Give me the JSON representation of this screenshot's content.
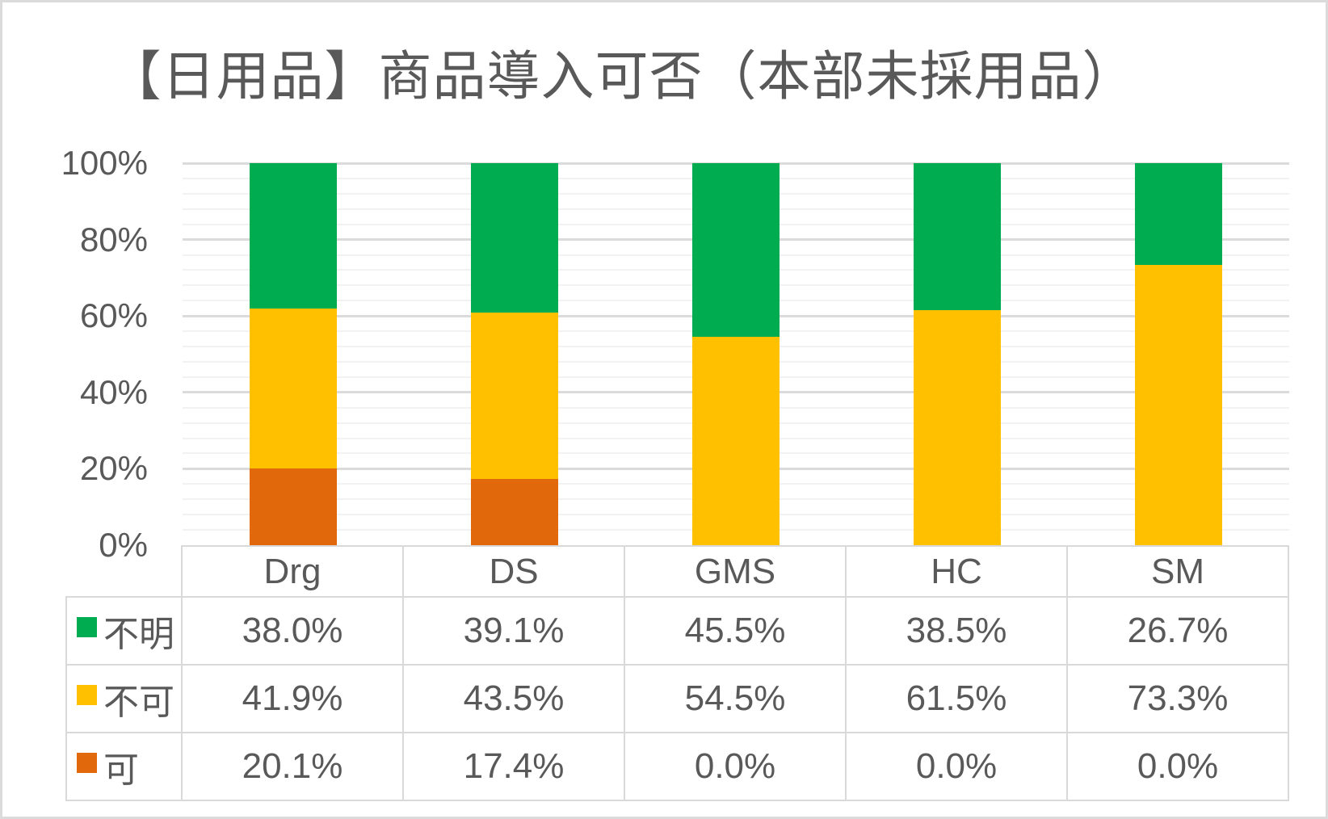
{
  "title": "【日用品】商品導入可否（本部未採用品）",
  "chart_data": {
    "type": "bar",
    "stacked": true,
    "orientation": "vertical",
    "title": "【日用品】商品導入可否（本部未採用品）",
    "categories": [
      "Drg",
      "DS",
      "GMS",
      "HC",
      "SM"
    ],
    "series": [
      {
        "name": "不明",
        "color": "#00AC50",
        "values": [
          38.0,
          39.1,
          45.5,
          38.5,
          26.7
        ],
        "display": [
          "38.0%",
          "39.1%",
          "45.5%",
          "38.5%",
          "26.7%"
        ]
      },
      {
        "name": "不可",
        "color": "#FFC000",
        "values": [
          41.9,
          43.5,
          54.5,
          61.5,
          73.3
        ],
        "display": [
          "41.9%",
          "43.5%",
          "54.5%",
          "61.5%",
          "73.3%"
        ]
      },
      {
        "name": "可",
        "color": "#E2690B",
        "values": [
          20.1,
          17.4,
          0.0,
          0.0,
          0.0
        ],
        "display": [
          "20.1%",
          "17.4%",
          "0.0%",
          "0.0%",
          "0.0%"
        ]
      }
    ],
    "stack_order_bottom_to_top": [
      "可",
      "不可",
      "不明"
    ],
    "y_axis": {
      "min": 0,
      "max": 100,
      "major_unit": 20,
      "minor_unit": 4,
      "ticks": [
        {
          "label": "100%",
          "value": 100
        },
        {
          "label": "80%",
          "value": 80
        },
        {
          "label": "60%",
          "value": 60
        },
        {
          "label": "40%",
          "value": 40
        },
        {
          "label": "20%",
          "value": 20
        },
        {
          "label": "0%",
          "value": 0
        }
      ]
    },
    "grid": true,
    "legend_position": "data-table",
    "text_color": "#595959"
  }
}
